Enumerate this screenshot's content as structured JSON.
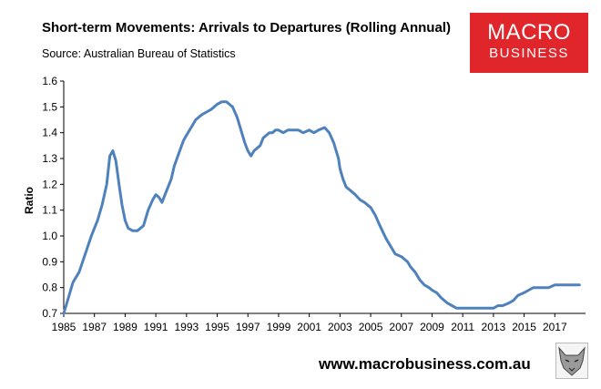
{
  "header": {
    "title": "Short-term Movements: Arrivals to Departures (Rolling Annual)",
    "source": "Source: Australian Bureau of Statistics"
  },
  "logo": {
    "line1": "MACRO",
    "line2": "BUSINESS",
    "background_color": "#e0262a"
  },
  "footer": {
    "website": "www.macrobusiness.com.au",
    "mascot_icon": "fox-head-icon"
  },
  "chart_data": {
    "type": "line",
    "title": "Short-term Movements: Arrivals to Departures (Rolling Annual)",
    "xlabel": "",
    "ylabel": "Ratio",
    "xlim": [
      1985,
      2019
    ],
    "ylim": [
      0.7,
      1.6
    ],
    "x_ticks": [
      "1985",
      "1987",
      "1989",
      "1991",
      "1993",
      "1995",
      "1997",
      "1999",
      "2001",
      "2003",
      "2005",
      "2007",
      "2009",
      "2011",
      "2013",
      "2015",
      "2017"
    ],
    "y_ticks": [
      "0.7",
      "0.8",
      "0.9",
      "1.0",
      "1.1",
      "1.2",
      "1.3",
      "1.4",
      "1.5",
      "1.6"
    ],
    "grid": false,
    "legend": "none",
    "series_color": "#4f81bd",
    "series": [
      {
        "x": [
          1985.0,
          1985.3,
          1985.6,
          1986.0,
          1986.4,
          1986.8,
          1987.2,
          1987.5,
          1987.8,
          1988.0,
          1988.2,
          1988.4,
          1988.6,
          1988.8,
          1989.0,
          1989.2,
          1989.5,
          1989.8,
          1990.2,
          1990.5,
          1990.8,
          1991.0,
          1991.2,
          1991.4,
          1991.6,
          1991.8,
          1992.0,
          1992.2,
          1992.5,
          1992.8,
          1993.0,
          1993.3,
          1993.6,
          1994.0,
          1994.3,
          1994.6,
          1995.0,
          1995.3,
          1995.6,
          1995.8,
          1996.0,
          1996.3,
          1996.6,
          1996.8,
          1997.0,
          1997.2,
          1997.4,
          1997.6,
          1997.8,
          1998.0,
          1998.2,
          1998.4,
          1998.6,
          1998.8,
          1999.0,
          1999.3,
          1999.6,
          2000.0,
          2000.3,
          2000.6,
          2001.0,
          2001.3,
          2001.6,
          2002.0,
          2002.3,
          2002.6,
          2002.9,
          2003.0,
          2003.2,
          2003.4,
          2003.6,
          2003.8,
          2004.0,
          2004.3,
          2004.6,
          2005.0,
          2005.3,
          2005.6,
          2006.0,
          2006.3,
          2006.6,
          2007.0,
          2007.2,
          2007.4,
          2007.6,
          2007.9,
          2008.2,
          2008.5,
          2008.8,
          2009.0,
          2009.3,
          2009.6,
          2010.0,
          2010.3,
          2010.6,
          2011.0,
          2011.3,
          2011.6,
          2012.0,
          2012.3,
          2012.6,
          2013.0,
          2013.3,
          2013.6,
          2014.0,
          2014.3,
          2014.6,
          2015.0,
          2015.3,
          2015.6,
          2016.0,
          2016.3,
          2016.6,
          2017.0,
          2017.3,
          2017.6,
          2017.9,
          2018.2,
          2018.6
        ],
        "y": [
          0.7,
          0.76,
          0.82,
          0.86,
          0.93,
          1.0,
          1.06,
          1.12,
          1.2,
          1.31,
          1.33,
          1.29,
          1.2,
          1.12,
          1.06,
          1.03,
          1.02,
          1.02,
          1.04,
          1.1,
          1.14,
          1.16,
          1.15,
          1.13,
          1.16,
          1.19,
          1.22,
          1.27,
          1.32,
          1.37,
          1.39,
          1.42,
          1.45,
          1.47,
          1.48,
          1.49,
          1.51,
          1.52,
          1.52,
          1.51,
          1.5,
          1.46,
          1.4,
          1.36,
          1.33,
          1.31,
          1.33,
          1.34,
          1.35,
          1.38,
          1.39,
          1.4,
          1.4,
          1.41,
          1.41,
          1.4,
          1.41,
          1.41,
          1.41,
          1.4,
          1.41,
          1.4,
          1.41,
          1.42,
          1.4,
          1.36,
          1.3,
          1.26,
          1.22,
          1.19,
          1.18,
          1.17,
          1.16,
          1.14,
          1.13,
          1.11,
          1.08,
          1.04,
          0.99,
          0.96,
          0.93,
          0.92,
          0.91,
          0.9,
          0.88,
          0.86,
          0.83,
          0.81,
          0.8,
          0.79,
          0.78,
          0.76,
          0.74,
          0.73,
          0.72,
          0.72,
          0.72,
          0.72,
          0.72,
          0.72,
          0.72,
          0.72,
          0.73,
          0.73,
          0.74,
          0.75,
          0.77,
          0.78,
          0.79,
          0.8,
          0.8,
          0.8,
          0.8,
          0.81,
          0.81,
          0.81,
          0.81,
          0.81,
          0.81
        ]
      }
    ]
  }
}
